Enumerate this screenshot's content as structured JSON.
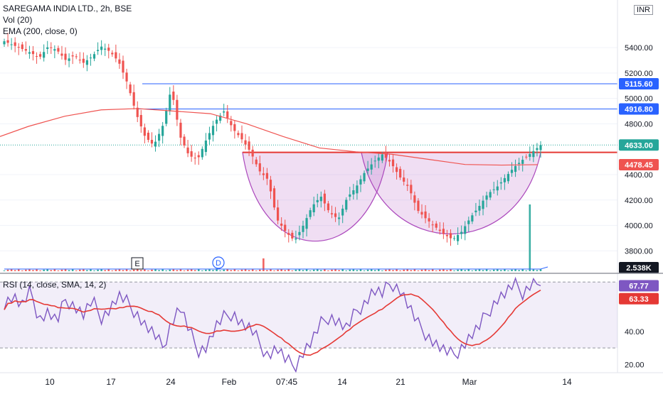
{
  "chart_data": [
    {
      "type": "candlestick",
      "symbol": "SAREGAMA INDIA LTD.",
      "interval": "2h",
      "exchange": "BSE",
      "currency": "INR",
      "indicators": {
        "volume": "Vol (20)",
        "ema": "EMA (200, close, 0)"
      },
      "y_ticks": [
        5400,
        5200,
        5000,
        4800,
        4400,
        4200,
        4000,
        3800
      ],
      "ylim": [
        3640,
        5730
      ],
      "x_ticks": [
        "10",
        "17",
        "24",
        "Feb",
        "07:45",
        "14",
        "21",
        "Mar",
        "14"
      ],
      "last_price": "4633.00",
      "ema_value": "4478.45",
      "volume_label": "2.538K",
      "horizontal_levels": [
        "5115.60",
        "4916.80"
      ],
      "neckline": 4575,
      "event_markers": [
        "E",
        "D"
      ],
      "close_path": [
        5450,
        5420,
        5390,
        5360,
        5320,
        5410,
        5380,
        5300,
        5340,
        5280,
        5330,
        5410,
        5370,
        5290,
        5120,
        4880,
        4700,
        4630,
        4780,
        5080,
        4700,
        4550,
        4520,
        4680,
        4820,
        4900,
        4760,
        4680,
        4580,
        4430,
        4360,
        4050,
        3950,
        3880,
        4000,
        4150,
        4230,
        4100,
        4050,
        4220,
        4300,
        4420,
        4500,
        4560,
        4490,
        4380,
        4300,
        4120,
        4050,
        3990,
        3930,
        3890,
        3950,
        4060,
        4150,
        4250,
        4300,
        4380,
        4460,
        4520,
        4575,
        4633
      ]
    },
    {
      "type": "line",
      "title": "RSI (14, close, SMA, 14, 2)",
      "series": [
        {
          "name": "RSI",
          "value_label": "67.77"
        },
        {
          "name": "SMA",
          "value_label": "63.33"
        }
      ],
      "rsi": [
        58,
        62,
        55,
        64,
        48,
        52,
        45,
        60,
        56,
        50,
        58,
        49,
        54,
        61,
        57,
        52,
        44,
        38,
        30,
        46,
        55,
        40,
        29,
        31,
        42,
        48,
        52,
        45,
        41,
        33,
        26,
        30,
        22,
        19,
        28,
        34,
        44,
        50,
        46,
        41,
        52,
        58,
        65,
        62,
        70,
        66,
        55,
        44,
        39,
        33,
        28,
        25,
        31,
        37,
        42,
        52,
        60,
        63,
        68,
        64,
        70,
        67.77
      ],
      "y_ticks": [
        40,
        20
      ],
      "ylim": [
        15,
        74
      ],
      "bands": [
        70,
        30
      ]
    }
  ]
}
